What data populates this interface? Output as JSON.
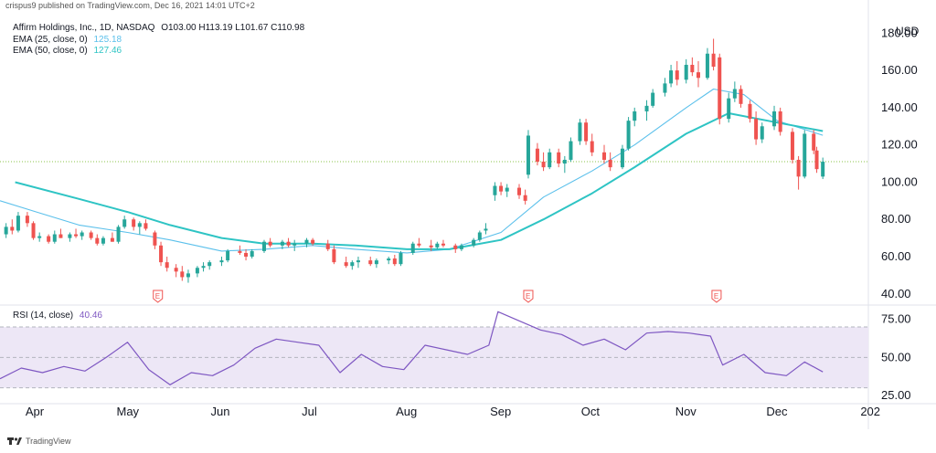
{
  "header": {
    "published_text": "crispus9 published on TradingView.com, Dec 16, 2021 14:01 UTC+2"
  },
  "legend": {
    "symbol_text": "Affirm Holdings, Inc., 1D, NASDAQ",
    "ohlc_text": "O103.00  H113.19  L101.67  C110.98",
    "ema25_label": "EMA (25, close, 0)",
    "ema25_value": "125.18",
    "ema50_label": "EMA (50, close, 0)",
    "ema50_value": "127.46"
  },
  "rsi_legend": {
    "label": "RSI (14, close)",
    "value": "40.46"
  },
  "footer": {
    "brand": "TradingView"
  },
  "colors": {
    "up": "#26A69A",
    "down": "#EF5350",
    "ema25": "#5BC0EB",
    "ema50": "#2EC4C4",
    "rsi": "#7E57C2",
    "rsi_band": "#EDE7F6"
  },
  "chart_data": [
    {
      "type": "candlestick",
      "title": "Affirm Holdings, Inc., 1D, NASDAQ",
      "ylabel": "USD",
      "ylim": [
        35,
        188
      ],
      "y_ticks": [
        40,
        60,
        80,
        100,
        120,
        140,
        160,
        180
      ],
      "y_tick_labels": [
        "40.00",
        "60.00",
        "80.00",
        "100.00",
        "120.00",
        "140.00",
        "160.00",
        "180.00"
      ],
      "x_tick_labels": [
        "Apr",
        "May",
        "Jun",
        "Jul",
        "Aug",
        "Sep",
        "Oct",
        "Nov",
        "Dec",
        "202"
      ],
      "x_range": [
        "2021-03-20",
        "2021-12-31"
      ],
      "last_price": 110.98,
      "earnings_markers": [
        {
          "date": "2021-05-11",
          "label": "E"
        },
        {
          "date": "2021-09-10",
          "label": "E"
        },
        {
          "date": "2021-11-11",
          "label": "E"
        }
      ],
      "candles": [
        {
          "t": "2021-03-22",
          "o": 72,
          "h": 78,
          "l": 70,
          "c": 76
        },
        {
          "t": "2021-03-24",
          "o": 76,
          "h": 80,
          "l": 72,
          "c": 74
        },
        {
          "t": "2021-03-26",
          "o": 74,
          "h": 84,
          "l": 73,
          "c": 82
        },
        {
          "t": "2021-03-29",
          "o": 82,
          "h": 84,
          "l": 76,
          "c": 78
        },
        {
          "t": "2021-03-31",
          "o": 78,
          "h": 79,
          "l": 69,
          "c": 70
        },
        {
          "t": "2021-04-02",
          "o": 70,
          "h": 73,
          "l": 68,
          "c": 71
        },
        {
          "t": "2021-04-05",
          "o": 71,
          "h": 72,
          "l": 67,
          "c": 68
        },
        {
          "t": "2021-04-07",
          "o": 68,
          "h": 74,
          "l": 67,
          "c": 72
        },
        {
          "t": "2021-04-09",
          "o": 72,
          "h": 75,
          "l": 70,
          "c": 70
        },
        {
          "t": "2021-04-12",
          "o": 70,
          "h": 73,
          "l": 68,
          "c": 72
        },
        {
          "t": "2021-04-14",
          "o": 72,
          "h": 75,
          "l": 70,
          "c": 71
        },
        {
          "t": "2021-04-16",
          "o": 71,
          "h": 74,
          "l": 69,
          "c": 73
        },
        {
          "t": "2021-04-19",
          "o": 73,
          "h": 74,
          "l": 69,
          "c": 70
        },
        {
          "t": "2021-04-21",
          "o": 70,
          "h": 72,
          "l": 66,
          "c": 67
        },
        {
          "t": "2021-04-23",
          "o": 67,
          "h": 71,
          "l": 66,
          "c": 70
        },
        {
          "t": "2021-04-26",
          "o": 70,
          "h": 73,
          "l": 68,
          "c": 68
        },
        {
          "t": "2021-04-28",
          "o": 68,
          "h": 77,
          "l": 67,
          "c": 76
        },
        {
          "t": "2021-04-30",
          "o": 76,
          "h": 82,
          "l": 75,
          "c": 80
        },
        {
          "t": "2021-05-03",
          "o": 80,
          "h": 81,
          "l": 74,
          "c": 76
        },
        {
          "t": "2021-05-05",
          "o": 76,
          "h": 79,
          "l": 72,
          "c": 78
        },
        {
          "t": "2021-05-07",
          "o": 78,
          "h": 80,
          "l": 74,
          "c": 75
        },
        {
          "t": "2021-05-10",
          "o": 73,
          "h": 74,
          "l": 64,
          "c": 66
        },
        {
          "t": "2021-05-12",
          "o": 66,
          "h": 68,
          "l": 55,
          "c": 57
        },
        {
          "t": "2021-05-14",
          "o": 57,
          "h": 60,
          "l": 52,
          "c": 54
        },
        {
          "t": "2021-05-17",
          "o": 54,
          "h": 56,
          "l": 49,
          "c": 52
        },
        {
          "t": "2021-05-19",
          "o": 52,
          "h": 55,
          "l": 47,
          "c": 49
        },
        {
          "t": "2021-05-21",
          "o": 49,
          "h": 53,
          "l": 46,
          "c": 51
        },
        {
          "t": "2021-05-24",
          "o": 51,
          "h": 55,
          "l": 49,
          "c": 54
        },
        {
          "t": "2021-05-26",
          "o": 54,
          "h": 57,
          "l": 52,
          "c": 55
        },
        {
          "t": "2021-05-28",
          "o": 55,
          "h": 58,
          "l": 53,
          "c": 57
        },
        {
          "t": "2021-06-01",
          "o": 57,
          "h": 60,
          "l": 55,
          "c": 58
        },
        {
          "t": "2021-06-03",
          "o": 58,
          "h": 64,
          "l": 57,
          "c": 63
        },
        {
          "t": "2021-06-07",
          "o": 63,
          "h": 66,
          "l": 61,
          "c": 62
        },
        {
          "t": "2021-06-09",
          "o": 62,
          "h": 64,
          "l": 58,
          "c": 60
        },
        {
          "t": "2021-06-11",
          "o": 60,
          "h": 64,
          "l": 59,
          "c": 63
        },
        {
          "t": "2021-06-15",
          "o": 63,
          "h": 69,
          "l": 62,
          "c": 68
        },
        {
          "t": "2021-06-17",
          "o": 68,
          "h": 70,
          "l": 65,
          "c": 66
        },
        {
          "t": "2021-06-21",
          "o": 66,
          "h": 69,
          "l": 64,
          "c": 68
        },
        {
          "t": "2021-06-23",
          "o": 68,
          "h": 70,
          "l": 65,
          "c": 66
        },
        {
          "t": "2021-06-25",
          "o": 66,
          "h": 69,
          "l": 63,
          "c": 67
        },
        {
          "t": "2021-06-29",
          "o": 67,
          "h": 70,
          "l": 65,
          "c": 69
        },
        {
          "t": "2021-07-01",
          "o": 69,
          "h": 70,
          "l": 66,
          "c": 67
        },
        {
          "t": "2021-07-06",
          "o": 67,
          "h": 69,
          "l": 63,
          "c": 64
        },
        {
          "t": "2021-07-08",
          "o": 64,
          "h": 66,
          "l": 56,
          "c": 57
        },
        {
          "t": "2021-07-12",
          "o": 57,
          "h": 60,
          "l": 54,
          "c": 55
        },
        {
          "t": "2021-07-14",
          "o": 55,
          "h": 58,
          "l": 53,
          "c": 57
        },
        {
          "t": "2021-07-16",
          "o": 57,
          "h": 60,
          "l": 54,
          "c": 58
        },
        {
          "t": "2021-07-20",
          "o": 58,
          "h": 60,
          "l": 55,
          "c": 56
        },
        {
          "t": "2021-07-22",
          "o": 56,
          "h": 59,
          "l": 54,
          "c": 58
        },
        {
          "t": "2021-07-26",
          "o": 58,
          "h": 60,
          "l": 56,
          "c": 59
        },
        {
          "t": "2021-07-28",
          "o": 59,
          "h": 61,
          "l": 55,
          "c": 56
        },
        {
          "t": "2021-07-30",
          "o": 56,
          "h": 63,
          "l": 55,
          "c": 62
        },
        {
          "t": "2021-08-03",
          "o": 62,
          "h": 68,
          "l": 61,
          "c": 67
        },
        {
          "t": "2021-08-05",
          "o": 67,
          "h": 70,
          "l": 65,
          "c": 66
        },
        {
          "t": "2021-08-09",
          "o": 66,
          "h": 69,
          "l": 63,
          "c": 65
        },
        {
          "t": "2021-08-11",
          "o": 65,
          "h": 68,
          "l": 64,
          "c": 67
        },
        {
          "t": "2021-08-13",
          "o": 67,
          "h": 69,
          "l": 65,
          "c": 66
        },
        {
          "t": "2021-08-17",
          "o": 66,
          "h": 67,
          "l": 62,
          "c": 64
        },
        {
          "t": "2021-08-19",
          "o": 64,
          "h": 67,
          "l": 63,
          "c": 66
        },
        {
          "t": "2021-08-23",
          "o": 66,
          "h": 70,
          "l": 65,
          "c": 69
        },
        {
          "t": "2021-08-25",
          "o": 69,
          "h": 74,
          "l": 68,
          "c": 73
        },
        {
          "t": "2021-08-27",
          "o": 74,
          "h": 78,
          "l": 72,
          "c": 75
        },
        {
          "t": "2021-08-30",
          "o": 93,
          "h": 100,
          "l": 90,
          "c": 98
        },
        {
          "t": "2021-09-01",
          "o": 98,
          "h": 100,
          "l": 93,
          "c": 95
        },
        {
          "t": "2021-09-03",
          "o": 95,
          "h": 99,
          "l": 92,
          "c": 97
        },
        {
          "t": "2021-09-07",
          "o": 97,
          "h": 99,
          "l": 91,
          "c": 93
        },
        {
          "t": "2021-09-09",
          "o": 93,
          "h": 96,
          "l": 88,
          "c": 90
        },
        {
          "t": "2021-09-10",
          "o": 104,
          "h": 128,
          "l": 102,
          "c": 125
        },
        {
          "t": "2021-09-13",
          "o": 118,
          "h": 121,
          "l": 109,
          "c": 111
        },
        {
          "t": "2021-09-15",
          "o": 111,
          "h": 116,
          "l": 106,
          "c": 108
        },
        {
          "t": "2021-09-17",
          "o": 108,
          "h": 118,
          "l": 107,
          "c": 116
        },
        {
          "t": "2021-09-20",
          "o": 116,
          "h": 118,
          "l": 108,
          "c": 110
        },
        {
          "t": "2021-09-22",
          "o": 110,
          "h": 114,
          "l": 105,
          "c": 112
        },
        {
          "t": "2021-09-24",
          "o": 112,
          "h": 124,
          "l": 111,
          "c": 122
        },
        {
          "t": "2021-09-27",
          "o": 122,
          "h": 134,
          "l": 120,
          "c": 132
        },
        {
          "t": "2021-09-29",
          "o": 132,
          "h": 134,
          "l": 120,
          "c": 122
        },
        {
          "t": "2021-10-01",
          "o": 122,
          "h": 126,
          "l": 114,
          "c": 116
        },
        {
          "t": "2021-10-05",
          "o": 116,
          "h": 120,
          "l": 110,
          "c": 112
        },
        {
          "t": "2021-10-07",
          "o": 112,
          "h": 116,
          "l": 106,
          "c": 108
        },
        {
          "t": "2021-10-11",
          "o": 108,
          "h": 120,
          "l": 107,
          "c": 118
        },
        {
          "t": "2021-10-13",
          "o": 118,
          "h": 135,
          "l": 117,
          "c": 133
        },
        {
          "t": "2021-10-15",
          "o": 133,
          "h": 140,
          "l": 130,
          "c": 138
        },
        {
          "t": "2021-10-19",
          "o": 138,
          "h": 144,
          "l": 133,
          "c": 141
        },
        {
          "t": "2021-10-21",
          "o": 141,
          "h": 150,
          "l": 140,
          "c": 148
        },
        {
          "t": "2021-10-25",
          "o": 148,
          "h": 156,
          "l": 146,
          "c": 153
        },
        {
          "t": "2021-10-27",
          "o": 153,
          "h": 163,
          "l": 151,
          "c": 160
        },
        {
          "t": "2021-10-29",
          "o": 160,
          "h": 165,
          "l": 152,
          "c": 155
        },
        {
          "t": "2021-11-01",
          "o": 155,
          "h": 166,
          "l": 153,
          "c": 163
        },
        {
          "t": "2021-11-03",
          "o": 163,
          "h": 167,
          "l": 157,
          "c": 159
        },
        {
          "t": "2021-11-05",
          "o": 159,
          "h": 165,
          "l": 151,
          "c": 156
        },
        {
          "t": "2021-11-08",
          "o": 156,
          "h": 172,
          "l": 155,
          "c": 169
        },
        {
          "t": "2021-11-10",
          "o": 169,
          "h": 177,
          "l": 160,
          "c": 162
        },
        {
          "t": "2021-11-12",
          "o": 167,
          "h": 169,
          "l": 131,
          "c": 134
        },
        {
          "t": "2021-11-15",
          "o": 134,
          "h": 148,
          "l": 132,
          "c": 145
        },
        {
          "t": "2021-11-17",
          "o": 145,
          "h": 154,
          "l": 143,
          "c": 150
        },
        {
          "t": "2021-11-19",
          "o": 150,
          "h": 152,
          "l": 140,
          "c": 142
        },
        {
          "t": "2021-11-22",
          "o": 142,
          "h": 144,
          "l": 132,
          "c": 134
        },
        {
          "t": "2021-11-24",
          "o": 134,
          "h": 138,
          "l": 120,
          "c": 123
        },
        {
          "t": "2021-11-26",
          "o": 123,
          "h": 132,
          "l": 121,
          "c": 130
        },
        {
          "t": "2021-11-30",
          "o": 130,
          "h": 141,
          "l": 128,
          "c": 138
        },
        {
          "t": "2021-12-02",
          "o": 138,
          "h": 140,
          "l": 125,
          "c": 127
        },
        {
          "t": "2021-12-06",
          "o": 127,
          "h": 129,
          "l": 110,
          "c": 112
        },
        {
          "t": "2021-12-08",
          "o": 112,
          "h": 114,
          "l": 96,
          "c": 103
        },
        {
          "t": "2021-12-10",
          "o": 103,
          "h": 128,
          "l": 102,
          "c": 126
        },
        {
          "t": "2021-12-13",
          "o": 126,
          "h": 128,
          "l": 115,
          "c": 117
        },
        {
          "t": "2021-12-14",
          "o": 117,
          "h": 119,
          "l": 105,
          "c": 107
        },
        {
          "t": "2021-12-16",
          "o": 103,
          "h": 113.19,
          "l": 101.67,
          "c": 110.98
        }
      ],
      "series": [
        {
          "name": "EMA (25, close, 0)",
          "x": [
            "2021-03-20",
            "2021-04-01",
            "2021-04-15",
            "2021-05-01",
            "2021-05-15",
            "2021-06-01",
            "2021-06-15",
            "2021-07-01",
            "2021-07-15",
            "2021-08-01",
            "2021-08-15",
            "2021-09-01",
            "2021-09-15",
            "2021-10-01",
            "2021-10-15",
            "2021-11-01",
            "2021-11-10",
            "2021-11-20",
            "2021-12-01",
            "2021-12-16"
          ],
          "values": [
            90,
            84,
            77,
            73,
            69,
            63,
            64,
            66,
            64,
            62,
            64,
            73,
            92,
            106,
            120,
            140,
            150,
            147,
            133,
            125.18
          ]
        },
        {
          "name": "EMA (50, close, 0)",
          "x": [
            "2021-03-25",
            "2021-04-15",
            "2021-05-01",
            "2021-05-15",
            "2021-06-01",
            "2021-06-15",
            "2021-07-01",
            "2021-07-15",
            "2021-08-01",
            "2021-08-15",
            "2021-09-01",
            "2021-09-15",
            "2021-10-01",
            "2021-10-15",
            "2021-11-01",
            "2021-11-15",
            "2021-12-01",
            "2021-12-16"
          ],
          "values": [
            100,
            91,
            84,
            77,
            70,
            67,
            67,
            66,
            64,
            64,
            69,
            80,
            94,
            108,
            126,
            137,
            132,
            127.46
          ]
        }
      ]
    },
    {
      "type": "line",
      "title": "RSI (14, close)",
      "ylim": [
        22,
        82
      ],
      "y_ticks": [
        25,
        50,
        75
      ],
      "y_tick_labels": [
        "25.00",
        "50.00",
        "75.00"
      ],
      "band": [
        30,
        70
      ],
      "series": [
        {
          "name": "RSI (14, close)",
          "x": [
            "2021-03-20",
            "2021-03-27",
            "2021-04-03",
            "2021-04-10",
            "2021-04-17",
            "2021-04-24",
            "2021-05-01",
            "2021-05-08",
            "2021-05-15",
            "2021-05-22",
            "2021-05-29",
            "2021-06-05",
            "2021-06-12",
            "2021-06-19",
            "2021-06-26",
            "2021-07-03",
            "2021-07-10",
            "2021-07-17",
            "2021-07-24",
            "2021-07-31",
            "2021-08-07",
            "2021-08-14",
            "2021-08-21",
            "2021-08-28",
            "2021-08-31",
            "2021-09-07",
            "2021-09-14",
            "2021-09-21",
            "2021-09-28",
            "2021-10-05",
            "2021-10-12",
            "2021-10-19",
            "2021-10-26",
            "2021-11-02",
            "2021-11-09",
            "2021-11-13",
            "2021-11-20",
            "2021-11-27",
            "2021-12-04",
            "2021-12-10",
            "2021-12-16"
          ],
          "values": [
            36,
            43,
            40,
            44,
            41,
            50,
            60,
            42,
            32,
            40,
            38,
            45,
            56,
            62,
            60,
            58,
            40,
            52,
            44,
            42,
            58,
            55,
            52,
            58,
            80,
            74,
            68,
            65,
            58,
            62,
            55,
            66,
            67,
            66,
            64,
            45,
            52,
            40,
            38,
            47,
            40.46
          ]
        }
      ]
    }
  ]
}
